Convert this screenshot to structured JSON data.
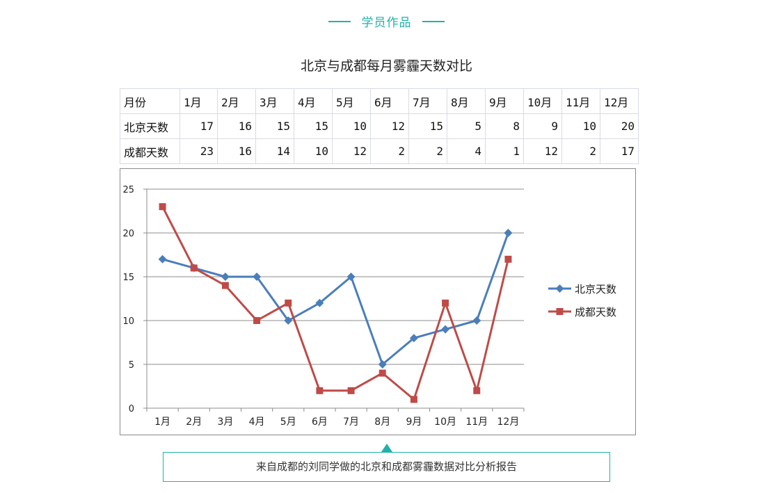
{
  "header": {
    "title": "学员作品",
    "accent_color": "#20b2aa"
  },
  "table": {
    "header_row": [
      "月份",
      "1月",
      "2月",
      "3月",
      "4月",
      "5月",
      "6月",
      "7月",
      "8月",
      "9月",
      "10月",
      "11月",
      "12月"
    ],
    "rows": [
      {
        "label": "北京天数",
        "values": [
          "17",
          "16",
          "15",
          "15",
          "10",
          "12",
          "15",
          "5",
          "8",
          "9",
          "10",
          "20"
        ]
      },
      {
        "label": "成都天数",
        "values": [
          "23",
          "16",
          "14",
          "10",
          "12",
          "2",
          "2",
          "4",
          "1",
          "12",
          "2",
          "17"
        ]
      }
    ]
  },
  "caption": "来自成都的刘同学做的北京和成都雾霾数据对比分析报告",
  "chart_data": {
    "type": "line",
    "title": "北京与成都每月雾霾天数对比",
    "xlabel": "",
    "ylabel": "",
    "categories": [
      "1月",
      "2月",
      "3月",
      "4月",
      "5月",
      "6月",
      "7月",
      "8月",
      "9月",
      "10月",
      "11月",
      "12月"
    ],
    "series": [
      {
        "name": "北京天数",
        "values": [
          17,
          16,
          15,
          15,
          10,
          12,
          15,
          5,
          8,
          9,
          10,
          20
        ],
        "color": "#4a7ebb",
        "marker": "diamond"
      },
      {
        "name": "成都天数",
        "values": [
          23,
          16,
          14,
          10,
          12,
          2,
          2,
          4,
          1,
          12,
          2,
          17
        ],
        "color": "#be4b48",
        "marker": "square"
      }
    ],
    "ylim": [
      0,
      25
    ],
    "yticks": [
      0,
      5,
      10,
      15,
      20,
      25
    ],
    "grid": true,
    "legend": "right"
  }
}
